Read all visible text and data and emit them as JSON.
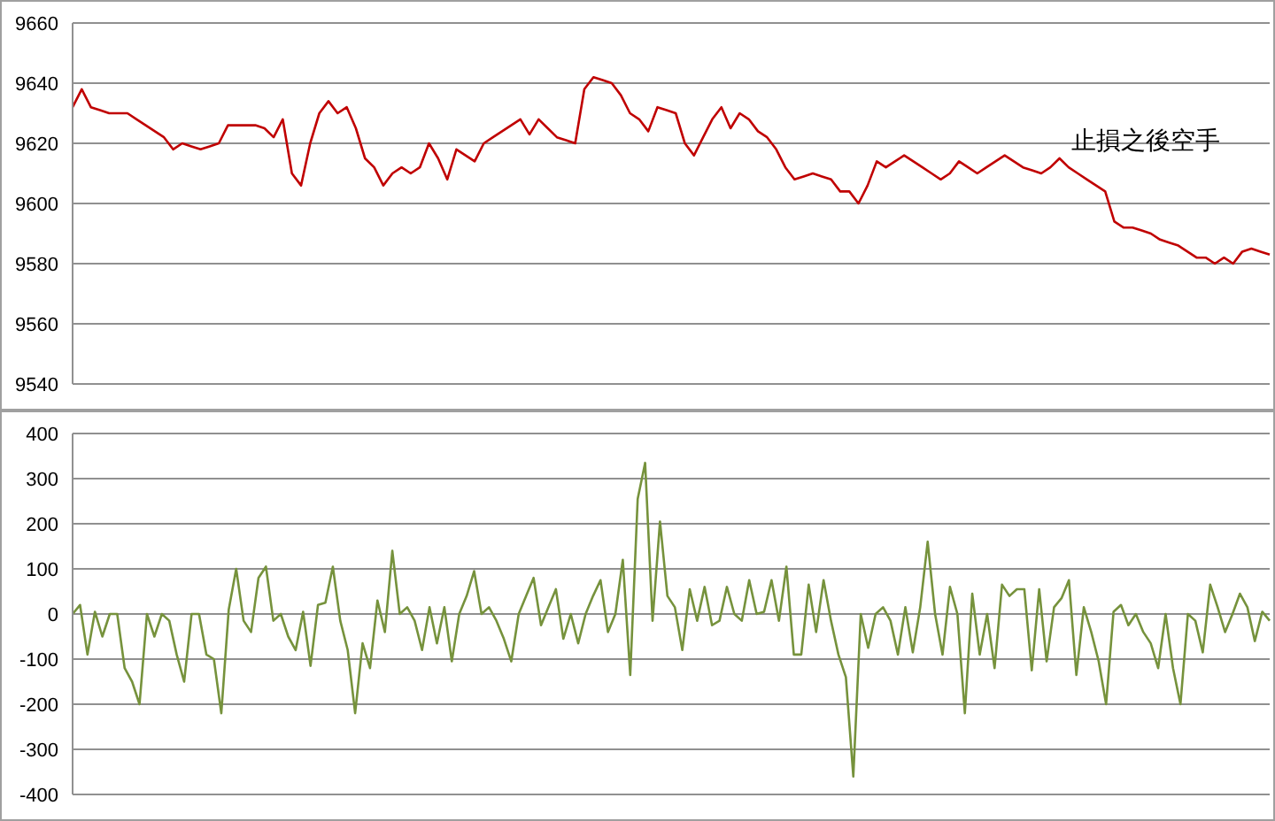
{
  "chart_data": [
    {
      "type": "line",
      "categories": [
        null,
        null,
        null,
        null,
        null,
        null,
        null,
        null,
        null,
        null,
        null,
        null,
        null,
        null,
        null,
        null,
        null,
        null,
        null,
        null,
        null,
        null,
        null,
        null,
        null,
        null,
        null,
        null,
        null,
        null,
        null,
        null,
        null,
        null,
        null,
        null,
        null,
        null,
        null,
        null,
        null,
        null,
        null,
        null,
        null,
        null,
        null,
        null,
        null,
        null,
        null,
        null,
        null,
        null,
        null,
        null,
        null,
        null,
        null,
        null,
        null,
        null,
        null,
        null,
        null,
        null,
        null,
        null,
        null,
        null,
        null,
        null,
        null,
        null,
        null,
        null,
        null,
        null,
        null,
        null,
        null,
        null,
        null,
        null,
        null,
        null,
        null,
        null,
        null,
        null,
        null,
        null,
        null,
        null,
        null,
        null,
        null,
        null,
        null,
        null,
        null,
        null,
        null,
        null,
        null,
        null,
        null,
        null,
        null,
        null,
        null,
        null,
        null,
        null,
        null,
        null,
        null,
        null,
        null,
        null,
        null,
        null,
        null,
        null,
        null,
        null,
        null,
        null,
        null,
        null,
        null,
        null
      ],
      "series": [
        {
          "color": "#c00000",
          "values": [
            9632,
            9638,
            9632,
            9631,
            9630,
            9630,
            9630,
            9628,
            9626,
            9624,
            9622,
            9618,
            9620,
            9619,
            9618,
            9619,
            9620,
            9626,
            9626,
            9626,
            9626,
            9625,
            9622,
            9628,
            9610,
            9606,
            9620,
            9630,
            9634,
            9630,
            9632,
            9625,
            9615,
            9612,
            9606,
            9610,
            9612,
            9610,
            9612,
            9620,
            9615,
            9608,
            9618,
            9616,
            9614,
            9620,
            9622,
            9624,
            9626,
            9628,
            9623,
            9628,
            9625,
            9622,
            9621,
            9620,
            9638,
            9642,
            9641,
            9640,
            9636,
            9630,
            9628,
            9624,
            9632,
            9631,
            9630,
            9620,
            9616,
            9622,
            9628,
            9632,
            9625,
            9630,
            9628,
            9624,
            9622,
            9618,
            9612,
            9608,
            9609,
            9610,
            9609,
            9608,
            9604,
            9604,
            9600,
            9606,
            9614,
            9612,
            9614,
            9616,
            9614,
            9612,
            9610,
            9608,
            9610,
            9614,
            9612,
            9610,
            9612,
            9614,
            9616,
            9614,
            9612,
            9611,
            9610,
            9612,
            9615,
            9612,
            9610,
            9608,
            9606,
            9604,
            9594,
            9592,
            9592,
            9591,
            9590,
            9588,
            9587,
            9586,
            9584,
            9582,
            9582,
            9580,
            9582,
            9580,
            9584,
            9585,
            9584,
            9583
          ]
        }
      ],
      "ylim": [
        9540,
        9660
      ],
      "yticks": [
        9540,
        9560,
        9580,
        9600,
        9620,
        9640,
        9660
      ],
      "grid": "y",
      "tick_labels": "y",
      "marker": "none",
      "legend": false,
      "annotations": [
        "止損之後空手"
      ]
    },
    {
      "type": "line",
      "categories": [
        null,
        null,
        null,
        null,
        null,
        null,
        null,
        null,
        null,
        null,
        null,
        null,
        null,
        null,
        null,
        null,
        null,
        null,
        null,
        null,
        null,
        null,
        null,
        null,
        null,
        null,
        null,
        null,
        null,
        null,
        null,
        null,
        null,
        null,
        null,
        null,
        null,
        null,
        null,
        null,
        null,
        null,
        null,
        null,
        null,
        null,
        null,
        null,
        null,
        null,
        null,
        null,
        null,
        null,
        null,
        null,
        null,
        null,
        null,
        null,
        null,
        null,
        null,
        null,
        null,
        null,
        null,
        null,
        null,
        null,
        null,
        null,
        null,
        null,
        null,
        null,
        null,
        null,
        null,
        null,
        null,
        null,
        null,
        null,
        null,
        null,
        null,
        null,
        null,
        null,
        null,
        null,
        null,
        null,
        null,
        null,
        null,
        null,
        null,
        null,
        null,
        null,
        null,
        null,
        null,
        null,
        null,
        null,
        null,
        null,
        null,
        null,
        null,
        null,
        null,
        null,
        null,
        null,
        null,
        null,
        null,
        null,
        null,
        null,
        null,
        null,
        null,
        null,
        null,
        null,
        null,
        null,
        null,
        null,
        null,
        null,
        null,
        null,
        null,
        null,
        null,
        null,
        null,
        null,
        null,
        null,
        null,
        null,
        null,
        null,
        null,
        null,
        null,
        null,
        null,
        null,
        null,
        null,
        null,
        null,
        null,
        null
      ],
      "series": [
        {
          "color": "#76923c",
          "values": [
            0,
            20,
            -90,
            5,
            -50,
            0,
            0,
            -120,
            -150,
            -200,
            0,
            -50,
            0,
            -15,
            -90,
            -150,
            0,
            0,
            -90,
            -100,
            -220,
            10,
            100,
            -15,
            -40,
            80,
            105,
            -15,
            0,
            -50,
            -80,
            5,
            -115,
            20,
            25,
            105,
            -15,
            -80,
            -220,
            -65,
            -120,
            30,
            -40,
            140,
            0,
            15,
            -15,
            -80,
            15,
            -65,
            15,
            -105,
            0,
            40,
            95,
            0,
            15,
            -15,
            -55,
            -105,
            0,
            40,
            80,
            -25,
            15,
            55,
            -55,
            0,
            -65,
            0,
            40,
            75,
            -40,
            0,
            120,
            -135,
            255,
            335,
            -15,
            205,
            40,
            15,
            -80,
            55,
            -15,
            60,
            -25,
            -15,
            60,
            0,
            -15,
            75,
            0,
            5,
            75,
            -15,
            105,
            -90,
            -90,
            65,
            -40,
            75,
            -15,
            -90,
            -140,
            -360,
            0,
            -75,
            0,
            15,
            -15,
            -90,
            15,
            -85,
            15,
            160,
            0,
            -90,
            60,
            0,
            -220,
            45,
            -90,
            0,
            -120,
            65,
            40,
            55,
            55,
            -125,
            55,
            -105,
            15,
            35,
            75,
            -135,
            15,
            -40,
            -105,
            -200,
            5,
            20,
            -25,
            0,
            -40,
            -65,
            -120,
            0,
            -120,
            -200,
            0,
            -15,
            -85,
            65,
            15,
            -40,
            0,
            45,
            15,
            -60,
            5,
            -15
          ]
        }
      ],
      "ylim": [
        -400,
        400
      ],
      "yticks": [
        -400,
        -300,
        -200,
        -100,
        0,
        100,
        200,
        300,
        400
      ],
      "grid": "y",
      "tick_labels": "y",
      "marker": "none",
      "legend": false
    }
  ]
}
